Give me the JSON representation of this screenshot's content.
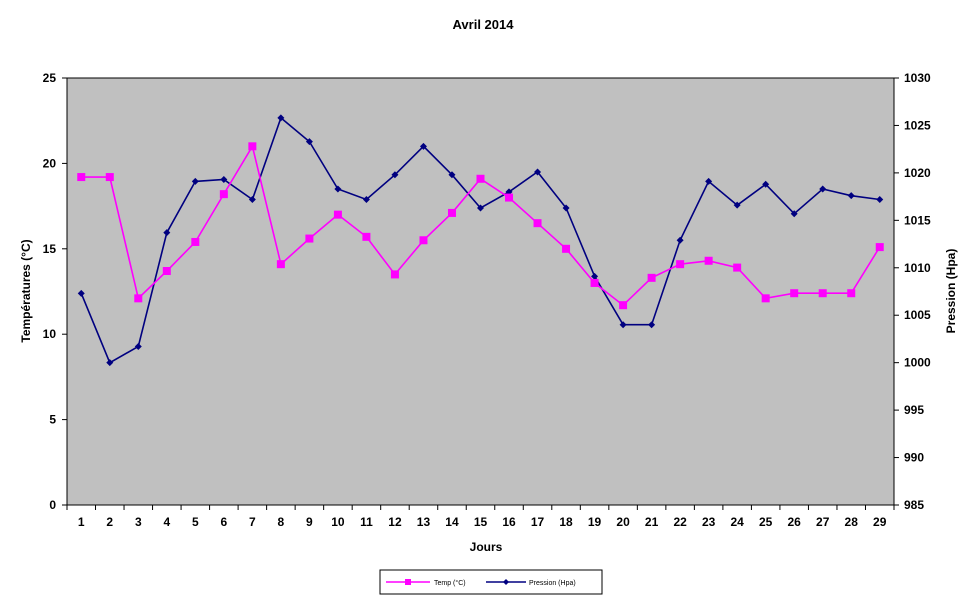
{
  "chart_data": {
    "type": "line",
    "title": "Avril 2014",
    "xlabel": "Jours",
    "ylabel_left": "Températures (°C)",
    "ylabel_right": "Pression (Hpa)",
    "categories": [
      "1",
      "2",
      "3",
      "4",
      "5",
      "6",
      "7",
      "8",
      "9",
      "10",
      "11",
      "12",
      "13",
      "14",
      "15",
      "16",
      "17",
      "18",
      "19",
      "20",
      "21",
      "22",
      "23",
      "24",
      "25",
      "26",
      "27",
      "28",
      "29"
    ],
    "ylim_left": [
      0,
      25
    ],
    "yticks_left": [
      0,
      5,
      10,
      15,
      20,
      25
    ],
    "ylim_right": [
      985,
      1030
    ],
    "yticks_right": [
      985,
      990,
      995,
      1000,
      1005,
      1010,
      1015,
      1020,
      1025,
      1030
    ],
    "grid": false,
    "legend_position": "bottom-center",
    "plot_background": "#c0c0c0",
    "series": [
      {
        "name": "Temp (°C)",
        "axis": "left",
        "color": "#ff00ff",
        "marker": "square",
        "values": [
          19.2,
          19.2,
          12.1,
          13.7,
          15.4,
          18.2,
          21.0,
          14.1,
          15.6,
          17.0,
          15.7,
          13.5,
          15.5,
          17.1,
          19.1,
          18.0,
          16.5,
          15.0,
          13.0,
          11.7,
          13.3,
          14.1,
          14.3,
          13.9,
          12.1,
          12.4,
          12.4,
          12.4,
          15.1
        ]
      },
      {
        "name": "Pression (Hpa)",
        "axis": "right",
        "color": "#000080",
        "marker": "diamond",
        "values": [
          1007.3,
          1000.0,
          1001.7,
          1013.7,
          1019.1,
          1019.3,
          1017.2,
          1025.8,
          1023.3,
          1018.3,
          1017.2,
          1019.8,
          1022.8,
          1019.8,
          1016.3,
          1018.0,
          1020.1,
          1016.3,
          1009.1,
          1004.0,
          1004.0,
          1012.9,
          1019.1,
          1016.6,
          1018.8,
          1015.7,
          1018.3,
          1017.6,
          1017.2
        ]
      }
    ]
  }
}
